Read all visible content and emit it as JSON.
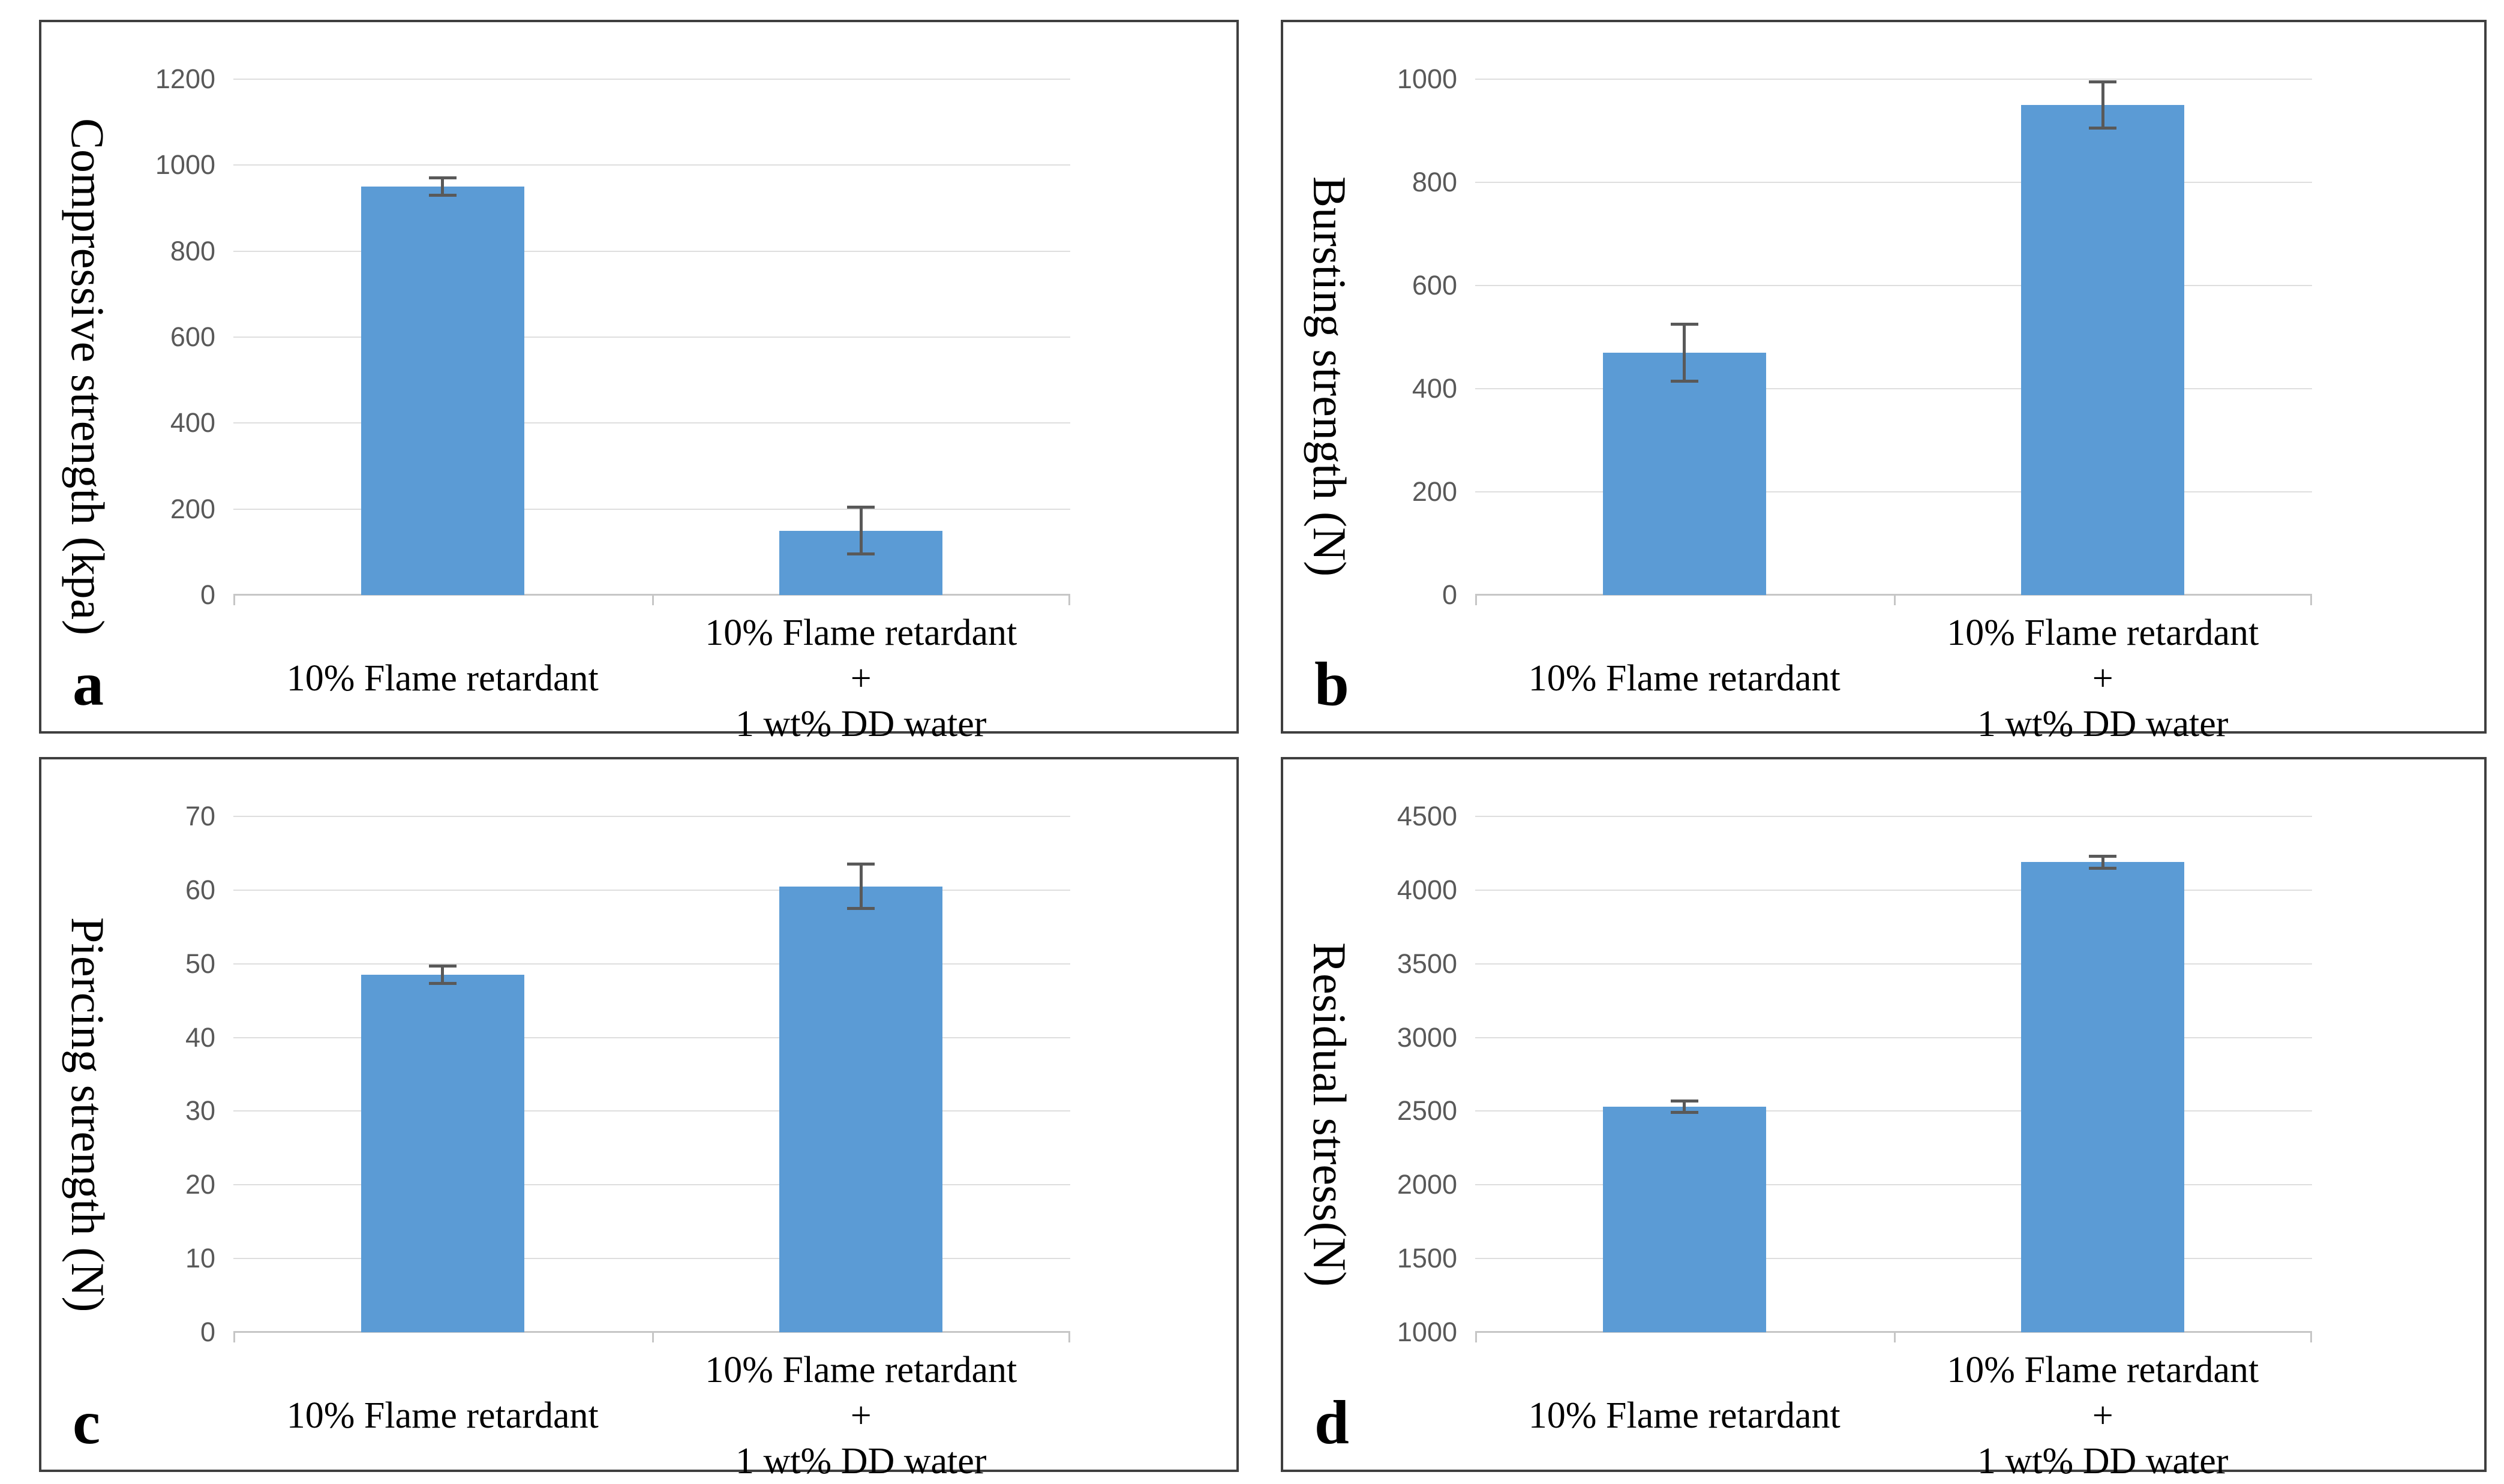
{
  "styles": {
    "bar_color": "#5B9BD5",
    "gridline_color": "#DEDEDE",
    "axis_line_color": "#C6C6C6",
    "error_bar_color": "#595959",
    "panel_border_color": "#3F3F3F",
    "tick_label_color": "#595959",
    "text_color": "#000000",
    "background_color": "#FFFFFF"
  },
  "chart_data": [
    {
      "type": "bar",
      "panel_letter": "a",
      "title": "",
      "xlabel": "",
      "ylabel": "Compressive strength (kpa)",
      "ylim": [
        0,
        1200
      ],
      "yticks": [
        0,
        200,
        400,
        600,
        800,
        1000,
        1200
      ],
      "categories": [
        [
          "10% Flame retardant"
        ],
        [
          "10% Flame retardant",
          "+",
          "1 wt% DD water"
        ]
      ],
      "values": [
        950,
        150
      ],
      "errors": [
        20,
        55
      ],
      "grid": true,
      "legend": "none"
    },
    {
      "type": "bar",
      "panel_letter": "b",
      "title": "",
      "xlabel": "",
      "ylabel": "Bursting strength (N)",
      "ylim": [
        0,
        1000
      ],
      "yticks": [
        0,
        200,
        400,
        600,
        800,
        1000
      ],
      "categories": [
        [
          "10% Flame retardant"
        ],
        [
          "10% Flame retardant",
          "+",
          "1 wt% DD water"
        ]
      ],
      "values": [
        470,
        950
      ],
      "errors": [
        55,
        45
      ],
      "grid": true,
      "legend": "none"
    },
    {
      "type": "bar",
      "panel_letter": "c",
      "title": "",
      "xlabel": "",
      "ylabel": "Piercing strength (N)",
      "ylim": [
        0,
        70
      ],
      "yticks": [
        0,
        10,
        20,
        30,
        40,
        50,
        60,
        70
      ],
      "categories": [
        [
          "10% Flame retardant"
        ],
        [
          "10% Flame retardant",
          "+",
          "1 wt% DD water"
        ]
      ],
      "values": [
        48.5,
        60.5
      ],
      "errors": [
        1.2,
        3
      ],
      "grid": true,
      "legend": "none"
    },
    {
      "type": "bar",
      "panel_letter": "d",
      "title": "",
      "xlabel": "",
      "ylabel": "Residual stress(N)",
      "ylim": [
        1000,
        4500
      ],
      "yticks": [
        1000,
        1500,
        2000,
        2500,
        3000,
        3500,
        4000,
        4500
      ],
      "categories": [
        [
          "10% Flame retardant"
        ],
        [
          "10% Flame retardant",
          "+",
          "1 wt% DD water"
        ]
      ],
      "values": [
        2530,
        4190
      ],
      "errors": [
        40,
        40
      ],
      "grid": true,
      "legend": "none"
    }
  ]
}
